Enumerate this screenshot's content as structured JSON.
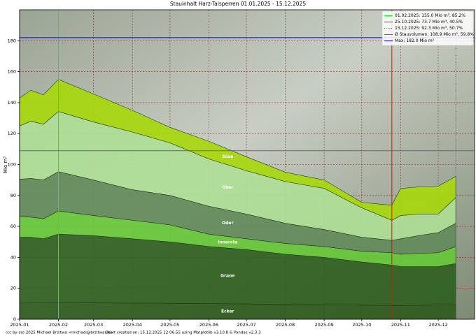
{
  "chart_data": {
    "type": "stacked-area",
    "title": "Stauinhalt Harz-Talsperren 01.01.2025 - 15.12.2025",
    "y_label": "Mio m³",
    "footer_left": "(cc by-sa) 2025 Michael Brzitwa <michael@brzitwa.de>",
    "footer_right": "Chart created on: 15.12.2025 12:06:55 using Matplotlib v3.10.8 & Pandas v2.3.3",
    "x": [
      "2025-01-01",
      "2025-01-10",
      "2025-01-20",
      "2025-02-01",
      "2025-03-01",
      "2025-04-01",
      "2025-05-01",
      "2025-06-01",
      "2025-07-01",
      "2025-08-01",
      "2025-09-01",
      "2025-10-01",
      "2025-10-25",
      "2025-11-01",
      "2025-11-15",
      "2025-12-01",
      "2025-12-15"
    ],
    "series": [
      {
        "name": "Ecker",
        "color": "#2c5a1c",
        "values": [
          10.5,
          10.5,
          10.5,
          10.8,
          10.6,
          10.4,
          10.3,
          10.1,
          9.9,
          9.6,
          9.4,
          9.1,
          8.9,
          8.9,
          9.0,
          9.2,
          9.4
        ]
      },
      {
        "name": "Grane",
        "color": "#2e5f1e",
        "values": [
          42.5,
          42.5,
          41.5,
          44.2,
          43.4,
          41.6,
          39.7,
          36.9,
          35.1,
          32.4,
          30.6,
          27.9,
          26.1,
          25.1,
          25.0,
          24.8,
          26.6
        ]
      },
      {
        "name": "Innerste",
        "color": "#66c836",
        "values": [
          13.5,
          13,
          13,
          15,
          13,
          12,
          11,
          8,
          7,
          7,
          7,
          7,
          8,
          8,
          8.5,
          9,
          11
        ]
      },
      {
        "name": "Oder",
        "color": "#62895a",
        "values": [
          24,
          25,
          25,
          25.4,
          23,
          19.7,
          19,
          18,
          16,
          13,
          11,
          9,
          8,
          10,
          11.5,
          13,
          15
        ]
      },
      {
        "name": "Oker",
        "color": "#ade096",
        "values": [
          34.5,
          37,
          36,
          38.9,
          37.5,
          37.3,
          34,
          30.6,
          28,
          27,
          26.6,
          19,
          13,
          15,
          14,
          12,
          16.7
        ]
      },
      {
        "name": "Söse",
        "color": "#a6d80a",
        "values": [
          18,
          20,
          19,
          20.7,
          18.1,
          14,
          10,
          11.4,
          9,
          6,
          5.4,
          3.5,
          9.7,
          17.5,
          17.5,
          18,
          13.6
        ]
      }
    ],
    "reference_lines": [
      {
        "label": "01.02.2025: 155.0 Mio m³, 85.2%",
        "color": "#00ff00",
        "x": "2025-02-01"
      },
      {
        "label": "25.10.2025: 73.7 Mio m³, 40.5%",
        "color": "#ff0000",
        "x": "2025-10-25"
      },
      {
        "label": "15.12.2025: 92.3 Mio m³, 50.7%",
        "color": "#666666",
        "x": "2025-12-15",
        "style": "dotted"
      },
      {
        "label": "Ø Stauvolumen: 108.9 Mio m³, 59.8%",
        "color": "#666666",
        "y": 108.9
      },
      {
        "label": "Max: 182.0 Mio m³",
        "color": "#0000ff",
        "y": 182
      }
    ],
    "xlim": [
      "2025-01-01",
      "2025-12-30"
    ],
    "xticks": [
      {
        "value": "2025-01-01",
        "label": "2025-01"
      },
      {
        "value": "2025-02-01",
        "label": "2025-02"
      },
      {
        "value": "2025-03-01",
        "label": "2025-03"
      },
      {
        "value": "2025-04-01",
        "label": "2025-04"
      },
      {
        "value": "2025-05-01",
        "label": "2025-05"
      },
      {
        "value": "2025-06-01",
        "label": "2025-06"
      },
      {
        "value": "2025-07-01",
        "label": "2025-07"
      },
      {
        "value": "2025-08-01",
        "label": "2025-08"
      },
      {
        "value": "2025-09-01",
        "label": "2025-09"
      },
      {
        "value": "2025-10-01",
        "label": "2025-10"
      },
      {
        "value": "2025-11-01",
        "label": "2025-11"
      },
      {
        "value": "2025-12-01",
        "label": "2025-12"
      }
    ],
    "ylim": [
      0,
      200
    ],
    "yticks": [
      0,
      20,
      40,
      60,
      80,
      100,
      120,
      140,
      160,
      180
    ],
    "grid": true,
    "legend": "upper right"
  }
}
